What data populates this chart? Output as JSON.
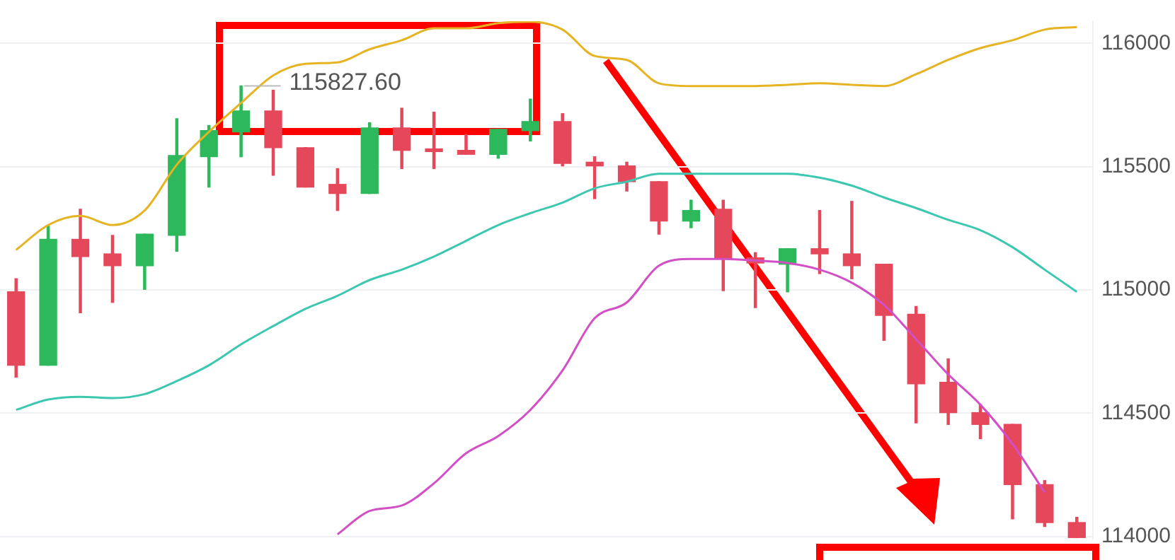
{
  "chart_data": {
    "type": "candlestick",
    "categories": [
      null,
      null,
      null,
      null,
      null,
      null,
      null,
      null,
      null,
      null,
      null,
      null,
      null,
      null,
      null,
      null,
      null,
      null,
      null,
      null,
      null,
      null,
      null,
      null,
      null,
      null,
      null,
      null,
      null,
      null,
      null,
      null,
      null,
      null
    ],
    "ohlc": [
      [
        114992,
        115045,
        114646,
        114694
      ],
      [
        114694,
        115258,
        114694,
        115205
      ],
      [
        115205,
        115327,
        114907,
        115135
      ],
      [
        115146,
        115221,
        114949,
        115098
      ],
      [
        115098,
        115226,
        115002,
        115226
      ],
      [
        115221,
        115694,
        115157,
        115545
      ],
      [
        115540,
        115667,
        115417,
        115646
      ],
      [
        115641,
        115827.6,
        115540,
        115726
      ],
      [
        115726,
        115810,
        115465,
        115577
      ],
      [
        115577,
        115577,
        115417,
        115417
      ],
      [
        115428,
        115492,
        115322,
        115391
      ],
      [
        115391,
        115678,
        115391,
        115657
      ],
      [
        115657,
        115737,
        115492,
        115566
      ],
      [
        115572,
        115721,
        115492,
        115561
      ],
      [
        115566,
        115630,
        115550,
        115550
      ],
      [
        115550,
        115651,
        115534,
        115651
      ],
      [
        115646,
        115774,
        115604,
        115683
      ],
      [
        115683,
        115715,
        115503,
        115513
      ],
      [
        115518,
        115540,
        115370,
        115503
      ],
      [
        115503,
        115518,
        115401,
        115439
      ],
      [
        115439,
        115439,
        115226,
        115279
      ],
      [
        115279,
        115364,
        115252,
        115322
      ],
      [
        115327,
        115364,
        114997,
        115125
      ],
      [
        115130,
        115151,
        114928,
        115109
      ],
      [
        115104,
        115167,
        114992,
        115167
      ],
      [
        115167,
        115322,
        115066,
        115146
      ],
      [
        115146,
        115359,
        115045,
        115098
      ],
      [
        115104,
        115104,
        114795,
        114896
      ],
      [
        114901,
        114933,
        114460,
        114619
      ],
      [
        114625,
        114720,
        114454,
        114502
      ],
      [
        114502,
        114534,
        114396,
        114454
      ],
      [
        114454,
        114454,
        114071,
        114210
      ],
      [
        114210,
        114226,
        114040,
        114056
      ],
      [
        114056,
        114077,
        113995,
        113995
      ]
    ],
    "colors": [
      "#e5475b",
      "#2eb85c",
      "#e5475b",
      "#e5475b",
      "#2eb85c",
      "#2eb85c",
      "#2eb85c",
      "#2eb85c",
      "#e5475b",
      "#e5475b",
      "#e5475b",
      "#2eb85c",
      "#e5475b",
      "#e5475b",
      "#e5475b",
      "#2eb85c",
      "#2eb85c",
      "#e5475b",
      "#e5475b",
      "#e5475b",
      "#e5475b",
      "#2eb85c",
      "#e5475b",
      "#e5475b",
      "#2eb85c",
      "#e5475b",
      "#e5475b",
      "#e5475b",
      "#e5475b",
      "#e5475b",
      "#e5475b",
      "#e5475b",
      "#e5475b",
      "#e5475b"
    ],
    "series": [
      {
        "type": "line",
        "color": "#e6b422",
        "values": [
          115162,
          115263,
          115300,
          115263,
          115322,
          115508,
          115641,
          115758,
          115870,
          115917,
          115923,
          115976,
          116013,
          116061,
          116061,
          116082,
          116088,
          116056,
          115949,
          115933,
          115838,
          115827,
          115827,
          115827,
          115832,
          115838,
          115832,
          115827,
          115875,
          115933,
          115981,
          116013,
          116056,
          116066
        ]
      },
      {
        "type": "line",
        "color": "#3cc8b0",
        "values": [
          114513,
          114555,
          114566,
          114561,
          114577,
          114630,
          114694,
          114779,
          114853,
          114923,
          114976,
          115040,
          115082,
          115135,
          115199,
          115263,
          115311,
          115354,
          115412,
          115439,
          115471,
          115471,
          115471,
          115471,
          115471,
          115455,
          115423,
          115375,
          115332,
          115284,
          115242,
          115173,
          115082,
          114992
        ]
      },
      {
        "type": "line",
        "color": "#d24fc6",
        "values": [
          null,
          null,
          null,
          null,
          null,
          null,
          null,
          null,
          null,
          null,
          114008,
          114103,
          114125,
          114215,
          114337,
          114407,
          114513,
          114673,
          114885,
          114949,
          115098,
          115125,
          115125,
          115119,
          115109,
          115082,
          115029,
          114939,
          114800,
          114657,
          114534,
          114375,
          114178,
          null
        ]
      }
    ],
    "ylim": [
      113990,
      116090
    ],
    "yticks": [
      116000,
      115500,
      115000,
      114500,
      114000
    ],
    "grid": "y",
    "legend": false,
    "tick_labels": "y",
    "marker": "none",
    "annotations": [
      "115827.60"
    ]
  }
}
